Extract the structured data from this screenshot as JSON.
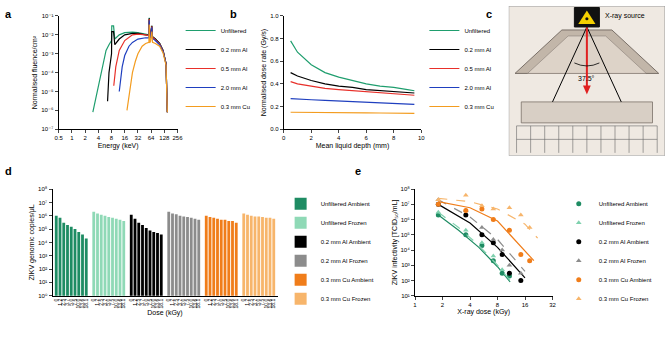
{
  "chart_data": [
    {
      "panel": "a",
      "type": "line",
      "log": true,
      "grid": false,
      "legend": "right",
      "x_label": "Energy (keV)",
      "y_label": "Normalised fluence/cm²",
      "xlim": [
        0.5,
        256
      ],
      "xticks": [
        0.5,
        1,
        2,
        4,
        8,
        16,
        32,
        64,
        128,
        256
      ],
      "ylim": [
        1e-07,
        0.1
      ],
      "yticks": [
        {
          "value": 1e-07,
          "label": "10⁻⁷"
        },
        {
          "value": 1e-06,
          "label": "10⁻⁶"
        },
        {
          "value": 1e-05,
          "label": "10⁻⁵"
        },
        {
          "value": 0.0001,
          "label": "10⁻⁴"
        },
        {
          "value": 0.001,
          "label": "10⁻³"
        },
        {
          "value": 0.01,
          "label": "10⁻²"
        },
        {
          "value": 0.1,
          "label": "10⁻¹"
        }
      ],
      "series": [
        {
          "name": "Unfiltered",
          "color": "#1f9e6e",
          "x": [
            3,
            4,
            5,
            6,
            7,
            8,
            8.1,
            8.9,
            9.5,
            12,
            16,
            24,
            32,
            48,
            57,
            58,
            59.5,
            62,
            66.5,
            67.3,
            69,
            80,
            100,
            120,
            140,
            150
          ],
          "values": [
            8e-07,
            2e-05,
            0.0003,
            0.0015,
            0.003,
            0.005,
            0.03,
            0.03,
            0.006,
            0.01,
            0.013,
            0.014,
            0.013,
            0.011,
            0.01,
            0.08,
            0.009,
            0.009,
            0.03,
            0.009,
            0.008,
            0.006,
            0.0035,
            0.0015,
            0.0003,
            8e-07
          ]
        },
        {
          "name": "0.2 mm Al",
          "color": "#000000",
          "x": [
            6.5,
            7,
            8,
            8.1,
            8.9,
            9.5,
            12,
            16,
            24,
            32,
            48,
            57,
            58,
            59.5,
            62,
            66.5,
            67.3,
            69,
            80,
            100,
            120,
            140,
            150
          ],
          "values": [
            3e-06,
            0.0001,
            0.001,
            0.015,
            0.015,
            0.003,
            0.006,
            0.01,
            0.012,
            0.012,
            0.01,
            0.0095,
            0.075,
            0.009,
            0.009,
            0.03,
            0.009,
            0.008,
            0.006,
            0.0035,
            0.0015,
            0.0003,
            8e-07
          ]
        },
        {
          "name": "0.5 mm Al",
          "color": "#e8302a",
          "x": [
            9,
            10,
            12,
            16,
            24,
            32,
            48,
            57,
            58,
            59.5,
            62,
            66.5,
            67.3,
            69,
            80,
            100,
            120,
            140,
            150
          ],
          "values": [
            2e-05,
            0.0002,
            0.0015,
            0.005,
            0.01,
            0.011,
            0.01,
            0.009,
            0.07,
            0.0085,
            0.0085,
            0.028,
            0.0085,
            0.0075,
            0.0055,
            0.0033,
            0.0014,
            0.0003,
            8e-07
          ]
        },
        {
          "name": "2.0 mm Al",
          "color": "#1f3fbf",
          "x": [
            12,
            14,
            16,
            20,
            24,
            32,
            48,
            57,
            58,
            59.5,
            62,
            66.5,
            67.3,
            69,
            80,
            100,
            120,
            140,
            150
          ],
          "values": [
            1e-05,
            0.0002,
            0.0008,
            0.0025,
            0.004,
            0.006,
            0.007,
            0.007,
            0.06,
            0.007,
            0.007,
            0.025,
            0.007,
            0.0065,
            0.005,
            0.003,
            0.0013,
            0.0003,
            8e-07
          ]
        },
        {
          "name": "0.3 mm Cu",
          "color": "#f39c1f",
          "x": [
            18,
            20,
            24,
            28,
            32,
            40,
            48,
            57,
            58,
            59.5,
            62,
            66.5,
            67.3,
            69,
            80,
            100,
            120,
            140,
            150
          ],
          "values": [
            1e-06,
            5e-06,
            0.0001,
            0.0004,
            0.001,
            0.0025,
            0.0035,
            0.004,
            0.035,
            0.004,
            0.0042,
            0.015,
            0.0042,
            0.004,
            0.0035,
            0.0025,
            0.0011,
            0.00025,
            8e-07
          ]
        }
      ]
    },
    {
      "panel": "b",
      "type": "line",
      "grid": false,
      "legend": "right",
      "x_label": "Mean liquid depth (mm)",
      "y_label": "Normalised dose rate (Gy/s)",
      "xlim": [
        0,
        10
      ],
      "xticks": [
        0,
        2,
        4,
        6,
        8,
        10
      ],
      "ylim": [
        0,
        1
      ],
      "yticks": [
        {
          "value": 0,
          "label": "0.0"
        },
        0.2,
        0.4,
        0.6,
        0.8,
        {
          "value": 1,
          "label": "1.0"
        }
      ],
      "x": [
        0.5,
        1,
        2,
        3,
        4,
        5,
        6,
        7,
        8,
        9,
        9.5
      ],
      "series": [
        {
          "name": "Unfiltered",
          "color": "#1f9e6e",
          "values": [
            0.78,
            0.68,
            0.57,
            0.5,
            0.46,
            0.43,
            0.4,
            0.38,
            0.37,
            0.35,
            0.34
          ]
        },
        {
          "name": "0.2 mm Al",
          "color": "#000000",
          "values": [
            0.5,
            0.47,
            0.43,
            0.4,
            0.38,
            0.37,
            0.35,
            0.34,
            0.33,
            0.32,
            0.32
          ]
        },
        {
          "name": "0.5 mm Al",
          "color": "#e8302a",
          "values": [
            0.42,
            0.4,
            0.38,
            0.36,
            0.35,
            0.34,
            0.33,
            0.32,
            0.31,
            0.3,
            0.3
          ]
        },
        {
          "name": "2.0 mm Al",
          "color": "#1f3fbf",
          "values": [
            0.27,
            0.265,
            0.26,
            0.255,
            0.25,
            0.245,
            0.24,
            0.235,
            0.23,
            0.225,
            0.22
          ]
        },
        {
          "name": "0.3 mm Cu",
          "color": "#f39c1f",
          "values": [
            0.15,
            0.15,
            0.148,
            0.147,
            0.146,
            0.145,
            0.144,
            0.143,
            0.142,
            0.141,
            0.14
          ]
        }
      ]
    },
    {
      "panel": "c",
      "type": "diagram",
      "annotations": [
        "X-ray source",
        "37.5°"
      ]
    },
    {
      "panel": "d",
      "type": "bar",
      "log": "y",
      "grid": false,
      "legend": "right",
      "x_label": "Dose (kGy)",
      "y_label": "ZIKV genomic copies/μL",
      "categories": [
        "0",
        "1.2",
        "2.5",
        "3.7",
        "5.0",
        "7.5",
        "10.0",
        "13.6",
        "18.1"
      ],
      "ylim": [
        1,
        100000000
      ],
      "yticks": [
        {
          "value": 1,
          "label": "10⁰"
        },
        {
          "value": 10,
          "label": "10¹"
        },
        {
          "value": 100,
          "label": "10²"
        },
        {
          "value": 1000,
          "label": "10³"
        },
        {
          "value": 10000,
          "label": "10⁴"
        },
        {
          "value": 100000,
          "label": "10⁵"
        },
        {
          "value": 1000000,
          "label": "10⁶"
        },
        {
          "value": 10000000,
          "label": "10⁷"
        },
        {
          "value": 100000000,
          "label": "10⁸"
        }
      ],
      "series": [
        {
          "name": "Unfiltered Ambient",
          "color": "#1e8c63",
          "values": [
            1000000,
            700000,
            300000,
            200000,
            150000,
            100000,
            60000,
            40000,
            20000
          ]
        },
        {
          "name": "Unfiltered Frozen",
          "color": "#8fd9b6",
          "values": [
            2000000,
            1500000,
            1200000,
            1000000,
            800000,
            700000,
            600000,
            500000,
            400000
          ]
        },
        {
          "name": "0.2 mm Al Ambient",
          "color": "#000000",
          "values": [
            1200000,
            600000,
            300000,
            200000,
            120000,
            80000,
            60000,
            50000,
            40000
          ]
        },
        {
          "name": "0.2 mm Al Frozen",
          "color": "#8c8c8c",
          "values": [
            2000000,
            1500000,
            1300000,
            1000000,
            900000,
            800000,
            700000,
            600000,
            500000
          ]
        },
        {
          "name": "0.3 mm Cu Ambient",
          "color": "#f07d1a",
          "values": [
            1000000,
            800000,
            700000,
            600000,
            500000,
            500000,
            400000,
            400000,
            300000
          ]
        },
        {
          "name": "0.3 mm Cu Frozen",
          "color": "#f7b56b",
          "values": [
            1500000,
            1200000,
            1000000,
            900000,
            900000,
            800000,
            700000,
            700000,
            600000
          ]
        }
      ]
    },
    {
      "panel": "e",
      "type": "scatter",
      "log": true,
      "grid": false,
      "legend": "right",
      "x_label": "X-ray dose (kGy)",
      "y_label": "ZIKV infectivity [TCID₅₀/mL]",
      "xlim": [
        1,
        32
      ],
      "xticks": [
        1,
        2,
        4,
        8,
        16,
        32
      ],
      "ylim": [
        10,
        100000000
      ],
      "yticks": [
        {
          "value": 10,
          "label": "10¹"
        },
        {
          "value": 100,
          "label": "10²"
        },
        {
          "value": 1000,
          "label": "10³"
        },
        {
          "value": 10000,
          "label": "10⁴"
        },
        {
          "value": 100000,
          "label": "10⁵"
        },
        {
          "value": 1000000,
          "label": "10⁶"
        },
        {
          "value": 10000000,
          "label": "10⁷"
        },
        {
          "value": 100000000,
          "label": "10⁸"
        }
      ],
      "series": [
        {
          "name": "Unfiltered Ambient",
          "color": "#1e8c63",
          "marker": "circle",
          "line_style": "solid",
          "x": [
            1.8,
            3.6,
            5.4,
            7.2,
            9,
            10.8
          ],
          "values": [
            2000000,
            100000,
            20000,
            2000,
            300,
            200
          ],
          "fit_x": [
            1.8,
            3,
            5,
            8,
            11
          ],
          "fit_values": [
            2000000,
            200000,
            15000,
            800,
            80
          ]
        },
        {
          "name": "Unfiltered Frozen",
          "color": "#7fd1ae",
          "marker": "triangle-up",
          "line_style": "dash",
          "x": [
            1.8,
            3.6,
            5.4,
            7.2,
            9,
            10.8
          ],
          "values": [
            3000000,
            200000,
            30000,
            4000,
            500,
            300
          ],
          "fit_x": [
            1.8,
            3,
            5,
            8,
            11
          ],
          "fit_values": [
            3000000,
            300000,
            20000,
            1000,
            100
          ]
        },
        {
          "name": "0.2 mm Al Ambient",
          "color": "#000000",
          "marker": "circle",
          "line_style": "solid",
          "x": [
            1.8,
            3.6,
            5.4,
            7.2,
            9,
            10.8,
            14.4
          ],
          "values": [
            10000000,
            2000000,
            100000,
            30000,
            5000,
            300,
            100
          ],
          "fit_x": [
            1.8,
            4,
            8,
            12,
            16
          ],
          "fit_values": [
            10000000,
            600000,
            15000,
            1000,
            150
          ]
        },
        {
          "name": "0.2 mm Al Frozen",
          "color": "#8c8c8c",
          "marker": "triangle-up",
          "line_style": "dash",
          "x": [
            1.8,
            3.6,
            5.4,
            7.2,
            9,
            10.8,
            14.4
          ],
          "values": [
            20000000,
            4000000,
            300000,
            50000,
            10000,
            1000,
            300
          ],
          "fit_x": [
            1.8,
            4,
            8,
            12,
            16
          ],
          "fit_values": [
            20000000,
            1500000,
            50000,
            3000,
            400
          ]
        },
        {
          "name": "0.3 mm Cu Ambient",
          "color": "#f07d1a",
          "marker": "circle",
          "line_style": "solid",
          "x": [
            1.8,
            3.6,
            5.4,
            7.2,
            10.8,
            14.4,
            18
          ],
          "values": [
            10000000,
            4000000,
            5000000,
            1000000,
            200000,
            5000,
            2000
          ],
          "fit_x": [
            1.8,
            4,
            8,
            16,
            20
          ],
          "fit_values": [
            15000000,
            6000000,
            800000,
            8000,
            2000
          ]
        },
        {
          "name": "0.3 mm Cu Frozen",
          "color": "#f7b56b",
          "marker": "triangle-up",
          "line_style": "dash",
          "x": [
            1.8,
            3.6,
            5.4,
            7.2,
            10.8,
            14.4,
            18
          ],
          "values": [
            20000000,
            40000000,
            8000000,
            5000000,
            6000000,
            2000000,
            300000
          ],
          "fit_x": [
            1.8,
            4,
            8,
            16,
            22
          ],
          "fit_values": [
            25000000,
            15000000,
            5000000,
            500000,
            60000
          ]
        }
      ]
    }
  ]
}
